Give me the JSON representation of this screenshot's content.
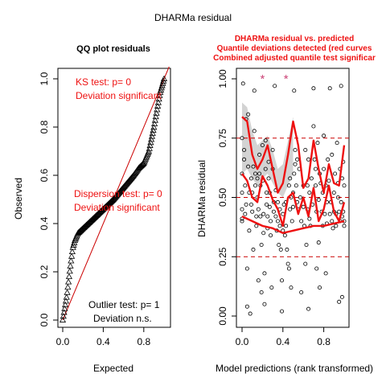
{
  "figure_title": "DHARMa residual",
  "chart_data": [
    {
      "type": "scatter",
      "title": "QQ plot residuals",
      "xlabel": "Expected",
      "ylabel": "Observed",
      "xlim": [
        0,
        1
      ],
      "ylim": [
        0,
        1
      ],
      "x_ticks": [
        "0.0",
        "0.4",
        "0.8"
      ],
      "y_ticks": [
        "0.0",
        "0.2",
        "0.4",
        "0.6",
        "0.8",
        "1.0"
      ],
      "marker": "open-triangle",
      "reference_line": {
        "from": [
          0,
          0
        ],
        "to": [
          1,
          1
        ],
        "color": "#cc0000"
      },
      "qq_curve": {
        "x": [
          0.0,
          0.02,
          0.04,
          0.06,
          0.08,
          0.1,
          0.12,
          0.15,
          0.2,
          0.3,
          0.4,
          0.5,
          0.6,
          0.7,
          0.75,
          0.8,
          0.85,
          0.9,
          0.93,
          0.96,
          1.0
        ],
        "y": [
          0.0,
          0.05,
          0.1,
          0.17,
          0.24,
          0.3,
          0.33,
          0.36,
          0.38,
          0.42,
          0.46,
          0.5,
          0.55,
          0.6,
          0.63,
          0.65,
          0.7,
          0.8,
          0.87,
          0.94,
          1.0
        ]
      },
      "annotations": [
        {
          "label": "KS test: p= 0",
          "color": "#ee1111"
        },
        {
          "label": "Deviation  significant",
          "color": "#ee1111"
        },
        {
          "label": "Dispersion test: p= 0",
          "color": "#ee1111"
        },
        {
          "label": "Deviation  significant",
          "color": "#ee1111"
        },
        {
          "label": "Outlier test: p= 1",
          "color": "#000000"
        },
        {
          "label": "Deviation  n.s.",
          "color": "#000000"
        }
      ]
    },
    {
      "type": "scatter",
      "title_lines": [
        "DHARMa residual vs. predicted",
        "Quantile deviations detected (red curves",
        "Combined adjusted quantile test significar"
      ],
      "title_color": "#ee1111",
      "xlabel": "Model predictions (rank transformed)",
      "ylabel": "DHARMa residual",
      "xlim": [
        0,
        1
      ],
      "ylim": [
        0,
        1
      ],
      "x_ticks": [
        "0.0",
        "0.4",
        "0.8"
      ],
      "y_ticks": [
        "0.00",
        "0.25",
        "0.50",
        "0.75",
        "1.00"
      ],
      "marker": "open-circle",
      "outlier_marker": "*",
      "outlier_color": "#cc4477",
      "outliers": [
        {
          "x": 0.2,
          "y": 1.0
        },
        {
          "x": 0.43,
          "y": 1.0
        }
      ],
      "quantile_reference_lines": [
        0.25,
        0.5,
        0.75
      ],
      "reference_color": "#cc0000",
      "quantile_curves": [
        {
          "quantile": 0.75,
          "x": [
            0.0,
            0.05,
            0.1,
            0.15,
            0.2,
            0.25,
            0.3,
            0.35,
            0.4,
            0.45,
            0.5,
            0.55,
            0.6,
            0.65,
            0.7,
            0.75,
            0.8,
            0.85,
            0.9,
            0.95,
            1.0
          ],
          "y": [
            0.84,
            0.82,
            0.68,
            0.62,
            0.66,
            0.72,
            0.62,
            0.52,
            0.56,
            0.68,
            0.82,
            0.72,
            0.54,
            0.58,
            0.74,
            0.62,
            0.52,
            0.64,
            0.56,
            0.55,
            0.72
          ]
        },
        {
          "quantile": 0.5,
          "x": [
            0.0,
            0.05,
            0.1,
            0.15,
            0.2,
            0.25,
            0.3,
            0.35,
            0.4,
            0.45,
            0.5,
            0.55,
            0.6,
            0.65,
            0.7,
            0.75,
            0.8,
            0.85,
            0.9,
            0.95,
            1.0
          ],
          "y": [
            0.6,
            0.57,
            0.5,
            0.48,
            0.59,
            0.55,
            0.49,
            0.45,
            0.38,
            0.5,
            0.52,
            0.43,
            0.5,
            0.42,
            0.54,
            0.4,
            0.45,
            0.55,
            0.44,
            0.4,
            0.48
          ]
        },
        {
          "quantile": 0.25,
          "x": [
            0.0,
            0.1,
            0.2,
            0.3,
            0.4,
            0.5,
            0.6,
            0.7,
            0.8,
            0.9,
            1.0
          ],
          "y": [
            0.42,
            0.4,
            0.38,
            0.37,
            0.35,
            0.36,
            0.37,
            0.38,
            0.38,
            0.39,
            0.4
          ]
        }
      ],
      "smooth_band": {
        "x": [
          0.0,
          0.05,
          0.1,
          0.15,
          0.2,
          0.25,
          0.3,
          0.35,
          0.4,
          0.45,
          0.5
        ],
        "y_low": [
          0.6,
          0.62,
          0.58,
          0.55,
          0.58,
          0.6,
          0.56,
          0.52,
          0.5,
          0.55,
          0.6
        ],
        "y_high": [
          0.9,
          0.88,
          0.78,
          0.72,
          0.74,
          0.76,
          0.7,
          0.62,
          0.64,
          0.74,
          0.84
        ]
      },
      "points": [
        [
          0.0,
          0.75
        ],
        [
          0.0,
          0.6
        ],
        [
          0.0,
          0.52
        ],
        [
          0.0,
          0.45
        ],
        [
          0.0,
          0.41
        ],
        [
          0.0,
          0.4
        ],
        [
          0.01,
          0.98
        ],
        [
          0.02,
          0.7
        ],
        [
          0.02,
          0.66
        ],
        [
          0.03,
          0.55
        ],
        [
          0.03,
          0.43
        ],
        [
          0.04,
          0.47
        ],
        [
          0.04,
          0.83
        ],
        [
          0.05,
          0.04
        ],
        [
          0.05,
          0.2
        ],
        [
          0.06,
          0.85
        ],
        [
          0.06,
          0.63
        ],
        [
          0.07,
          0.52
        ],
        [
          0.07,
          0.36
        ],
        [
          0.08,
          0.01
        ],
        [
          0.09,
          0.58
        ],
        [
          0.09,
          0.47
        ],
        [
          0.1,
          0.52
        ],
        [
          0.1,
          0.44
        ],
        [
          0.11,
          0.63
        ],
        [
          0.11,
          0.28
        ],
        [
          0.12,
          0.95
        ],
        [
          0.12,
          0.78
        ],
        [
          0.13,
          0.6
        ],
        [
          0.13,
          0.55
        ],
        [
          0.14,
          0.42
        ],
        [
          0.14,
          0.38
        ],
        [
          0.15,
          0.58
        ],
        [
          0.15,
          0.5
        ],
        [
          0.16,
          0.45
        ],
        [
          0.16,
          0.15
        ],
        [
          0.17,
          0.68
        ],
        [
          0.17,
          0.6
        ],
        [
          0.18,
          0.55
        ],
        [
          0.18,
          0.42
        ],
        [
          0.19,
          0.3
        ],
        [
          0.19,
          0.1
        ],
        [
          0.2,
          0.57
        ],
        [
          0.2,
          0.72
        ],
        [
          0.21,
          0.43
        ],
        [
          0.21,
          0.35
        ],
        [
          0.22,
          0.18
        ],
        [
          0.22,
          0.05
        ],
        [
          0.23,
          0.74
        ],
        [
          0.23,
          0.62
        ],
        [
          0.24,
          0.52
        ],
        [
          0.24,
          0.47
        ],
        [
          0.25,
          0.42
        ],
        [
          0.25,
          0.37
        ],
        [
          0.26,
          0.65
        ],
        [
          0.26,
          0.58
        ],
        [
          0.27,
          0.52
        ],
        [
          0.27,
          0.46
        ],
        [
          0.28,
          0.4
        ],
        [
          0.28,
          0.34
        ],
        [
          0.29,
          0.12
        ],
        [
          0.3,
          0.7
        ],
        [
          0.3,
          0.62
        ],
        [
          0.31,
          0.48
        ],
        [
          0.31,
          0.44
        ],
        [
          0.32,
          0.97
        ],
        [
          0.33,
          0.53
        ],
        [
          0.33,
          0.42
        ],
        [
          0.34,
          0.36
        ],
        [
          0.35,
          0.48
        ],
        [
          0.35,
          0.4
        ],
        [
          0.36,
          0.3
        ],
        [
          0.37,
          0.45
        ],
        [
          0.37,
          0.38
        ],
        [
          0.38,
          0.28
        ],
        [
          0.39,
          0.15
        ],
        [
          0.39,
          0.02
        ],
        [
          0.4,
          0.43
        ],
        [
          0.4,
          0.36
        ],
        [
          0.41,
          0.47
        ],
        [
          0.42,
          0.34
        ],
        [
          0.43,
          0.38
        ],
        [
          0.43,
          0.48
        ],
        [
          0.44,
          0.28
        ],
        [
          0.45,
          0.22
        ],
        [
          0.46,
          0.2
        ],
        [
          0.46,
          0.55
        ],
        [
          0.47,
          0.58
        ],
        [
          0.47,
          0.45
        ],
        [
          0.48,
          0.5
        ],
        [
          0.48,
          0.12
        ],
        [
          0.49,
          0.4
        ],
        [
          0.5,
          0.52
        ],
        [
          0.5,
          0.46
        ],
        [
          0.51,
          0.6
        ],
        [
          0.51,
          0.95
        ],
        [
          0.52,
          0.64
        ],
        [
          0.52,
          0.7
        ],
        [
          0.53,
          0.55
        ],
        [
          0.54,
          0.66
        ],
        [
          0.54,
          0.48
        ],
        [
          0.55,
          0.45
        ],
        [
          0.56,
          0.62
        ],
        [
          0.57,
          0.5
        ],
        [
          0.58,
          0.4
        ],
        [
          0.58,
          0.1
        ],
        [
          0.6,
          0.55
        ],
        [
          0.6,
          0.46
        ],
        [
          0.61,
          0.38
        ],
        [
          0.62,
          0.7
        ],
        [
          0.62,
          0.22
        ],
        [
          0.63,
          0.3
        ],
        [
          0.64,
          0.55
        ],
        [
          0.64,
          0.45
        ],
        [
          0.65,
          0.66
        ],
        [
          0.65,
          0.03
        ],
        [
          0.66,
          0.41
        ],
        [
          0.66,
          0.52
        ],
        [
          0.67,
          0.38
        ],
        [
          0.68,
          0.58
        ],
        [
          0.69,
          0.47
        ],
        [
          0.7,
          0.96
        ],
        [
          0.7,
          0.8
        ],
        [
          0.71,
          0.66
        ],
        [
          0.72,
          0.62
        ],
        [
          0.72,
          0.55
        ],
        [
          0.73,
          0.44
        ],
        [
          0.73,
          0.2
        ],
        [
          0.74,
          0.73
        ],
        [
          0.75,
          0.49
        ],
        [
          0.75,
          0.31
        ],
        [
          0.76,
          0.6
        ],
        [
          0.76,
          0.12
        ],
        [
          0.77,
          0.56
        ],
        [
          0.78,
          0.44
        ],
        [
          0.79,
          0.52
        ],
        [
          0.79,
          0.38
        ],
        [
          0.8,
          0.76
        ],
        [
          0.8,
          0.62
        ],
        [
          0.81,
          0.43
        ],
        [
          0.82,
          0.55
        ],
        [
          0.82,
          0.18
        ],
        [
          0.83,
          0.48
        ],
        [
          0.83,
          0.39
        ],
        [
          0.84,
          0.66
        ],
        [
          0.85,
          0.57
        ],
        [
          0.86,
          0.43
        ],
        [
          0.86,
          0.96
        ],
        [
          0.87,
          0.48
        ],
        [
          0.88,
          0.4
        ],
        [
          0.88,
          0.68
        ],
        [
          0.89,
          0.37
        ],
        [
          0.9,
          0.52
        ],
        [
          0.9,
          0.44
        ],
        [
          0.91,
          0.6
        ],
        [
          0.92,
          0.43
        ],
        [
          0.92,
          0.38
        ],
        [
          0.93,
          0.73
        ],
        [
          0.94,
          0.56
        ],
        [
          0.94,
          0.5
        ],
        [
          0.95,
          0.44
        ],
        [
          0.95,
          0.06
        ],
        [
          0.96,
          0.62
        ],
        [
          0.96,
          0.4
        ],
        [
          0.97,
          0.48
        ],
        [
          0.97,
          0.97
        ],
        [
          0.98,
          0.58
        ],
        [
          0.98,
          0.42
        ],
        [
          0.99,
          0.44
        ],
        [
          0.99,
          0.65
        ],
        [
          1.0,
          0.4
        ],
        [
          1.0,
          0.55
        ],
        [
          1.0,
          0.38
        ],
        [
          0.98,
          0.08
        ]
      ]
    }
  ]
}
